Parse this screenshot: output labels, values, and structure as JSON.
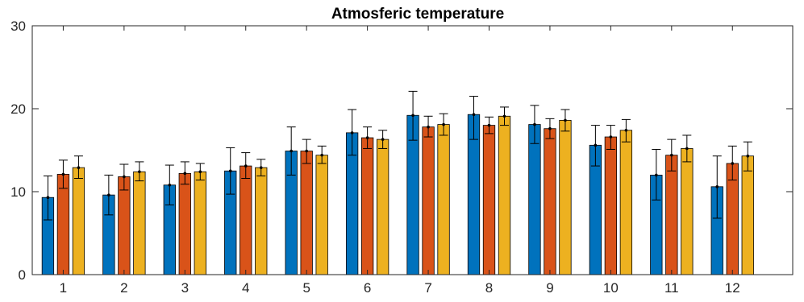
{
  "chart_data": {
    "type": "bar",
    "title": "Atmosferic temperature",
    "xlabel": "",
    "ylabel": "",
    "ylim": [
      0,
      30
    ],
    "yticks": [
      0,
      10,
      20,
      30
    ],
    "categories": [
      "1",
      "2",
      "3",
      "4",
      "5",
      "6",
      "7",
      "8",
      "9",
      "10",
      "11",
      "12"
    ],
    "grid": false,
    "legend": "none",
    "series": [
      {
        "color": "#0072BD",
        "values": [
          9.3,
          9.6,
          10.8,
          12.5,
          14.9,
          17.1,
          19.2,
          19.3,
          18.1,
          15.6,
          12.0,
          10.6
        ],
        "err_low": [
          6.6,
          7.2,
          8.4,
          9.7,
          12.0,
          14.4,
          16.2,
          16.3,
          15.8,
          13.1,
          9.0,
          6.8
        ],
        "err_high": [
          11.9,
          12.0,
          13.2,
          15.3,
          17.8,
          19.9,
          22.1,
          21.5,
          20.4,
          18.0,
          15.1,
          14.3
        ]
      },
      {
        "color": "#D95319",
        "values": [
          12.1,
          11.8,
          12.2,
          13.1,
          14.9,
          16.5,
          17.8,
          18.0,
          17.6,
          16.6,
          14.4,
          13.4
        ],
        "err_low": [
          10.4,
          10.2,
          10.9,
          11.6,
          13.4,
          15.2,
          16.6,
          17.0,
          16.4,
          15.1,
          12.5,
          11.4
        ],
        "err_high": [
          13.8,
          13.3,
          13.6,
          14.7,
          16.3,
          17.8,
          19.1,
          19.0,
          18.8,
          18.0,
          16.3,
          15.5
        ]
      },
      {
        "color": "#EDB120",
        "values": [
          12.9,
          12.4,
          12.4,
          12.9,
          14.4,
          16.3,
          18.1,
          19.1,
          18.6,
          17.4,
          15.2,
          14.3
        ],
        "err_low": [
          11.6,
          11.3,
          11.4,
          11.9,
          13.4,
          15.2,
          16.8,
          18.0,
          17.3,
          16.0,
          13.6,
          12.5
        ],
        "err_high": [
          14.3,
          13.6,
          13.4,
          13.9,
          15.5,
          17.4,
          19.4,
          20.2,
          19.9,
          18.7,
          16.8,
          16.0
        ]
      }
    ]
  }
}
